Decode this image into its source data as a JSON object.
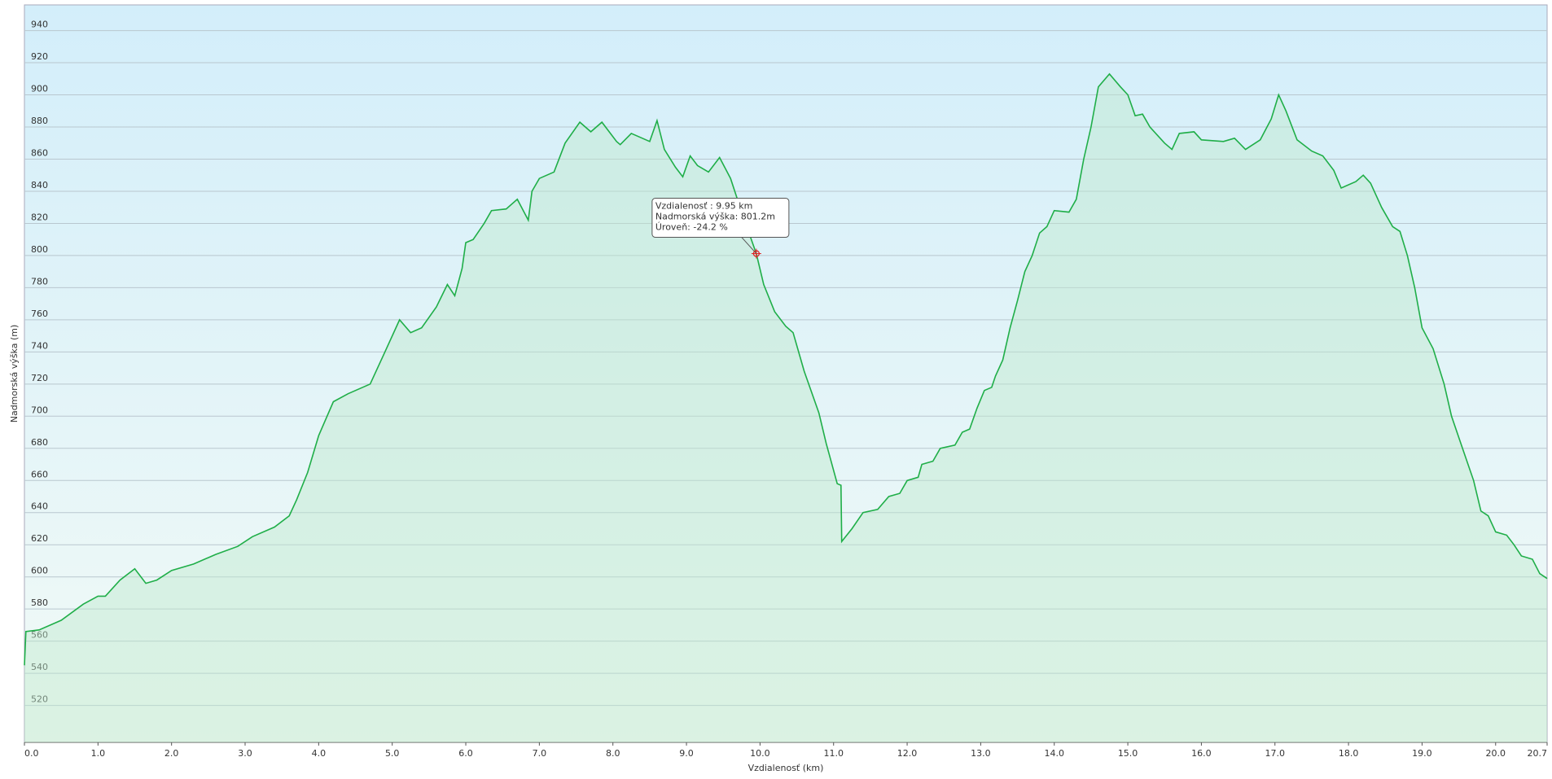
{
  "chart_data": {
    "type": "line",
    "x_label": "Vzdialenosť  (km)",
    "y_label": "Nadmorská výška (m)",
    "xlim": [
      0,
      20.7
    ],
    "ylim": [
      497,
      956
    ],
    "xticks": [
      {
        "value": 0,
        "label": "0.0"
      },
      {
        "value": 1,
        "label": "1.0"
      },
      {
        "value": 2,
        "label": "2.0"
      },
      {
        "value": 3,
        "label": "3.0"
      },
      {
        "value": 4,
        "label": "4.0"
      },
      {
        "value": 5,
        "label": "5.0"
      },
      {
        "value": 6,
        "label": "6.0"
      },
      {
        "value": 7,
        "label": "7.0"
      },
      {
        "value": 8,
        "label": "8.0"
      },
      {
        "value": 9,
        "label": "9.0"
      },
      {
        "value": 10,
        "label": "10.0"
      },
      {
        "value": 11,
        "label": "11.0"
      },
      {
        "value": 12,
        "label": "12.0"
      },
      {
        "value": 13,
        "label": "13.0"
      },
      {
        "value": 14,
        "label": "14.0"
      },
      {
        "value": 15,
        "label": "15.0"
      },
      {
        "value": 16,
        "label": "16.0"
      },
      {
        "value": 17,
        "label": "17.0"
      },
      {
        "value": 18,
        "label": "18.0"
      },
      {
        "value": 19,
        "label": "19.0"
      },
      {
        "value": 20,
        "label": "20.0"
      },
      20.7
    ],
    "yticks": [
      520,
      540,
      560,
      580,
      600,
      620,
      640,
      660,
      680,
      700,
      720,
      740,
      760,
      780,
      800,
      820,
      840,
      860,
      880,
      900,
      920,
      940
    ],
    "grid": true,
    "color": "#1fae48",
    "x": [
      0,
      0.02,
      0.2,
      0.5,
      0.8,
      1.0,
      1.1,
      1.3,
      1.5,
      1.65,
      1.8,
      2.0,
      2.3,
      2.6,
      2.9,
      3.1,
      3.4,
      3.6,
      3.7,
      3.85,
      4.0,
      4.2,
      4.4,
      4.7,
      4.9,
      5.1,
      5.25,
      5.4,
      5.6,
      5.75,
      5.85,
      5.95,
      6.0,
      6.1,
      6.25,
      6.35,
      6.55,
      6.7,
      6.85,
      6.9,
      7.0,
      7.2,
      7.35,
      7.55,
      7.7,
      7.85,
      8.05,
      8.1,
      8.25,
      8.4,
      8.5,
      8.6,
      8.7,
      8.85,
      8.95,
      9.05,
      9.15,
      9.3,
      9.45,
      9.6,
      9.75,
      9.95,
      10.05,
      10.2,
      10.35,
      10.45,
      10.6,
      10.8,
      10.9,
      11.05,
      11.1,
      11.11,
      11.25,
      11.4,
      11.6,
      11.75,
      11.9,
      12.0,
      12.15,
      12.2,
      12.35,
      12.45,
      12.65,
      12.75,
      12.85,
      12.95,
      13.05,
      13.15,
      13.2,
      13.3,
      13.4,
      13.5,
      13.6,
      13.7,
      13.8,
      13.9,
      14.0,
      14.2,
      14.3,
      14.4,
      14.5,
      14.6,
      14.75,
      14.9,
      15.0,
      15.1,
      15.2,
      15.3,
      15.5,
      15.6,
      15.7,
      15.9,
      16.0,
      16.3,
      16.45,
      16.6,
      16.8,
      16.95,
      17.05,
      17.15,
      17.3,
      17.5,
      17.65,
      17.8,
      17.9,
      18.1,
      18.2,
      18.3,
      18.45,
      18.6,
      18.7,
      18.8,
      18.9,
      19.0,
      19.15,
      19.3,
      19.4,
      19.55,
      19.7,
      19.8,
      19.9,
      20.0,
      20.15,
      20.25,
      20.35,
      20.5,
      20.6,
      20.7
    ],
    "values": [
      545,
      566,
      567,
      573,
      583,
      588,
      588,
      598,
      605,
      596,
      598,
      604,
      608,
      614,
      619,
      625,
      631,
      638,
      648,
      665,
      688,
      709,
      714,
      720,
      740,
      760,
      752,
      755,
      768,
      782,
      775,
      792,
      808,
      810,
      820,
      828,
      829,
      835,
      822,
      840,
      848,
      852,
      870,
      883,
      877,
      883,
      871,
      869,
      876,
      873,
      871,
      884,
      866,
      855,
      849,
      862,
      856,
      852,
      861,
      848,
      827,
      801,
      782,
      765,
      756,
      752,
      728,
      702,
      683,
      658,
      657,
      622,
      630,
      640,
      642,
      650,
      652,
      660,
      662,
      670,
      672,
      680,
      682,
      690,
      692,
      705,
      716,
      718,
      725,
      735,
      755,
      772,
      790,
      800,
      814,
      818,
      828,
      827,
      835,
      860,
      880,
      905,
      913,
      905,
      900,
      887,
      888,
      880,
      870,
      866,
      876,
      877,
      872,
      871,
      873,
      866,
      872,
      885,
      900,
      890,
      872,
      865,
      862,
      853,
      842,
      846,
      850,
      845,
      830,
      818,
      815,
      800,
      780,
      755,
      742,
      720,
      700,
      680,
      660,
      641,
      638,
      628,
      626,
      620,
      613,
      611,
      602,
      599
    ],
    "tooltip": {
      "x": 9.95,
      "y": 801.2,
      "lines": [
        "Vzdialenosť : 9.95 km",
        "Nadmorská výška: 801.2m",
        "Úroveň: -24.2 %"
      ]
    }
  }
}
